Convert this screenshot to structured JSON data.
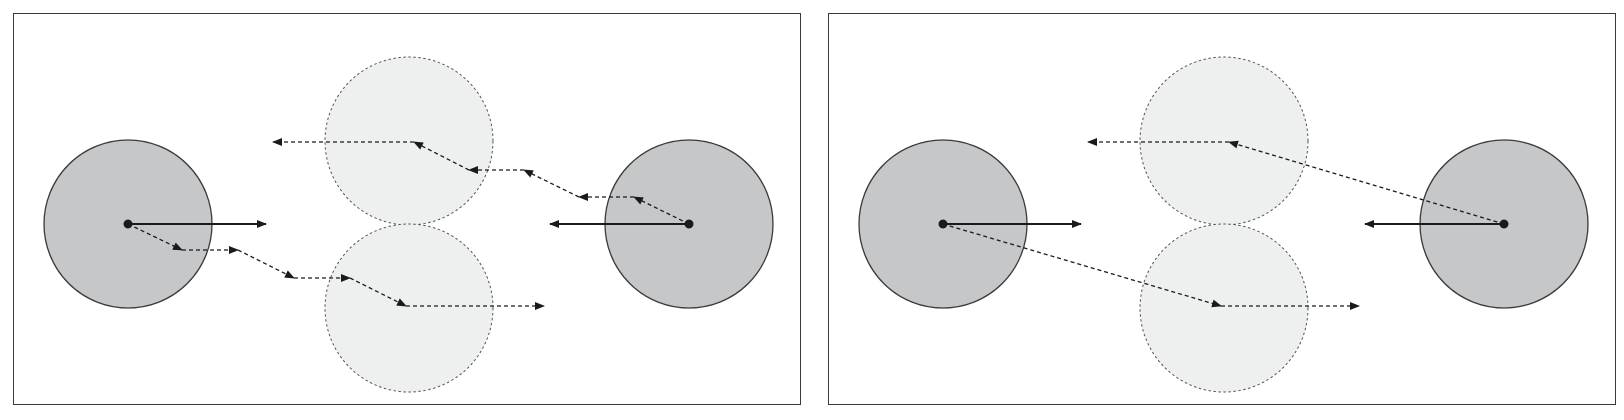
{
  "colors": {
    "frame": "#3a3a3a",
    "solid_circle_fill": "#c6c7c8",
    "solid_circle_stroke": "#3a3a3a",
    "ghost_circle_fill": "#eeefef",
    "ghost_circle_stroke": "#555555",
    "arrow": "#1a1a1a"
  },
  "panels": [
    {
      "id": "left",
      "description_name": "segmented-dashed-paths",
      "dashed_path_style": "stepped"
    },
    {
      "id": "right",
      "description_name": "direct-dashed-paths",
      "dashed_path_style": "straight"
    }
  ],
  "icons": {
    "solid_arrow": "solid-arrow-icon",
    "dashed_arrow": "dashed-arrow-icon",
    "center_dot": "center-dot-icon"
  }
}
